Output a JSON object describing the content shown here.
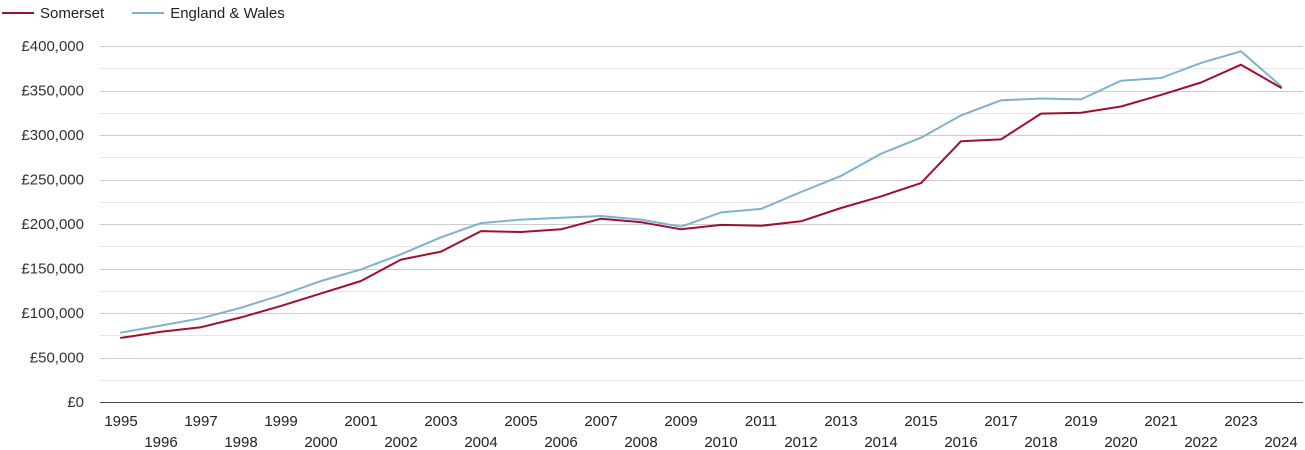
{
  "chart_data": {
    "type": "line",
    "title": "",
    "xlabel": "",
    "ylabel": "",
    "ylim": [
      0,
      400000
    ],
    "grid": true,
    "legend_position": "top-left",
    "x": [
      1995,
      1996,
      1997,
      1998,
      1999,
      2000,
      2001,
      2002,
      2003,
      2004,
      2005,
      2006,
      2007,
      2008,
      2009,
      2010,
      2011,
      2012,
      2013,
      2014,
      2015,
      2016,
      2017,
      2018,
      2019,
      2020,
      2021,
      2022,
      2023,
      2024
    ],
    "x_tick_labels": [
      "1995",
      "1996",
      "1997",
      "1998",
      "1999",
      "2000",
      "2001",
      "2002",
      "2003",
      "2004",
      "2005",
      "2006",
      "2007",
      "2008",
      "2009",
      "2010",
      "2011",
      "2012",
      "2013",
      "2014",
      "2015",
      "2016",
      "2017",
      "2018",
      "2019",
      "2020",
      "2021",
      "2022",
      "2023",
      "2024"
    ],
    "y_ticks": [
      0,
      50000,
      100000,
      150000,
      200000,
      250000,
      300000,
      350000,
      400000
    ],
    "y_tick_labels": [
      "£0",
      "£50,000",
      "£100,000",
      "£150,000",
      "£200,000",
      "£250,000",
      "£300,000",
      "£350,000",
      "£400,000"
    ],
    "series": [
      {
        "name": "Somerset",
        "color": "#a0102e",
        "values": [
          72000,
          79000,
          84000,
          95000,
          108000,
          122000,
          136000,
          160000,
          169000,
          192000,
          191000,
          194000,
          206000,
          202000,
          194000,
          199000,
          198000,
          203000,
          218000,
          231000,
          246000,
          293000,
          295000,
          324000,
          325000,
          332000,
          345000,
          359000,
          379000,
          353000
        ]
      },
      {
        "name": "England & Wales",
        "color": "#7eb2d0",
        "values": [
          78000,
          86000,
          94000,
          106000,
          120000,
          136000,
          149000,
          166000,
          185000,
          201000,
          205000,
          207000,
          209000,
          205000,
          197000,
          213000,
          217000,
          236000,
          254000,
          279000,
          297000,
          322000,
          339000,
          341000,
          340000,
          361000,
          364000,
          381000,
          394000,
          355000
        ]
      }
    ]
  }
}
